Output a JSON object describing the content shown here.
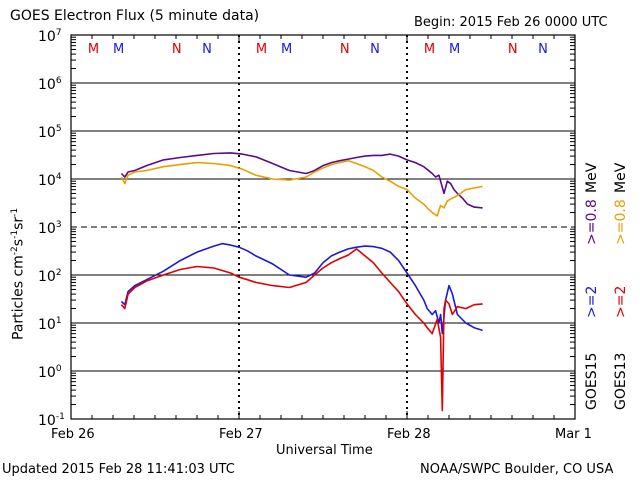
{
  "chart_data": {
    "type": "line",
    "title": "GOES Electron Flux (5 minute data)",
    "begin_label": "Begin: 2015 Feb 26 0000 UTC",
    "xlabel": "Universal Time",
    "ylabel": "Particles cm-2s-1sr-1",
    "ylabel_parts": {
      "base": "Particles cm",
      "e1": "-2",
      "mid1": "s",
      "e2": "-1",
      "mid2": "sr",
      "e3": "-1"
    },
    "y_scale": "log",
    "ylim": [
      0.1,
      10000000
    ],
    "y_ticks": [
      {
        "base": "10",
        "exp": "7",
        "value": 10000000
      },
      {
        "base": "10",
        "exp": "6",
        "value": 1000000
      },
      {
        "base": "10",
        "exp": "5",
        "value": 100000
      },
      {
        "base": "10",
        "exp": "4",
        "value": 10000
      },
      {
        "base": "10",
        "exp": "3",
        "value": 1000
      },
      {
        "base": "10",
        "exp": "2",
        "value": 100
      },
      {
        "base": "10",
        "exp": "1",
        "value": 10
      },
      {
        "base": "10",
        "exp": "0",
        "value": 1
      },
      {
        "base": "10",
        "exp": "-1",
        "value": 0.1
      }
    ],
    "x_unit": "days since 2015 Feb 26 0000 UTC",
    "xlim": [
      0,
      3
    ],
    "x_ticks": [
      {
        "label": "Feb 26",
        "value": 0
      },
      {
        "label": "Feb 27",
        "value": 1
      },
      {
        "label": "Feb 28",
        "value": 2
      },
      {
        "label": "Mar 1",
        "value": 3
      }
    ],
    "threshold_line": 1000,
    "marker_labels": [
      {
        "label": "M",
        "x": 0.13,
        "color": "#e00000"
      },
      {
        "label": "M",
        "x": 0.28,
        "color": "#1a1ad8"
      },
      {
        "label": "N",
        "x": 0.63,
        "color": "#e00000"
      },
      {
        "label": "N",
        "x": 0.81,
        "color": "#1a1ad8"
      },
      {
        "label": "M",
        "x": 1.13,
        "color": "#e00000"
      },
      {
        "label": "M",
        "x": 1.28,
        "color": "#1a1ad8"
      },
      {
        "label": "N",
        "x": 1.63,
        "color": "#e00000"
      },
      {
        "label": "N",
        "x": 1.81,
        "color": "#1a1ad8"
      },
      {
        "label": "M",
        "x": 2.13,
        "color": "#e00000"
      },
      {
        "label": "M",
        "x": 2.28,
        "color": "#1a1ad8"
      },
      {
        "label": "N",
        "x": 2.63,
        "color": "#e00000"
      },
      {
        "label": "N",
        "x": 2.81,
        "color": "#1a1ad8"
      }
    ],
    "legend": {
      "goes15": "GOES15",
      "goes13": "GOES13",
      "e2_15": ">=2",
      "e2_13": ">=2",
      "e08_15": ">=0.8",
      "e08_13": ">=0.8",
      "unit1": "MeV",
      "unit2": "MeV"
    },
    "series": [
      {
        "name": "GOES15 >=0.8 MeV",
        "color": "#5a0a8c",
        "x": [
          0.3,
          0.32,
          0.34,
          0.38,
          0.45,
          0.55,
          0.65,
          0.75,
          0.85,
          0.95,
          1.02,
          1.1,
          1.2,
          1.3,
          1.4,
          1.45,
          1.5,
          1.55,
          1.6,
          1.65,
          1.7,
          1.75,
          1.8,
          1.85,
          1.9,
          1.95,
          2.0,
          2.05,
          2.1,
          2.15,
          2.17,
          2.19,
          2.2,
          2.22,
          2.24,
          2.26,
          2.28,
          2.3,
          2.33,
          2.36,
          2.4,
          2.45
        ],
        "values": [
          13000,
          11000,
          14000,
          15000,
          19000,
          25000,
          28000,
          31000,
          34000,
          35000,
          33000,
          29000,
          21000,
          15000,
          13000,
          15000,
          19000,
          22000,
          24000,
          26000,
          28000,
          30000,
          31000,
          31000,
          33000,
          30000,
          25000,
          22000,
          18000,
          13000,
          11000,
          12000,
          9000,
          5000,
          9000,
          8000,
          6000,
          5000,
          4000,
          3000,
          2600,
          2500
        ]
      },
      {
        "name": "GOES13 >=0.8 MeV",
        "color": "#e8a000",
        "x": [
          0.3,
          0.32,
          0.34,
          0.38,
          0.45,
          0.55,
          0.65,
          0.75,
          0.85,
          0.95,
          1.02,
          1.1,
          1.2,
          1.3,
          1.4,
          1.45,
          1.5,
          1.55,
          1.6,
          1.65,
          1.7,
          1.75,
          1.8,
          1.85,
          1.9,
          1.95,
          2.0,
          2.05,
          2.1,
          2.12,
          2.15,
          2.18,
          2.2,
          2.22,
          2.24,
          2.27,
          2.3,
          2.35,
          2.4,
          2.45
        ],
        "values": [
          11000,
          8000,
          12000,
          14000,
          15000,
          18000,
          20000,
          22000,
          21000,
          19000,
          16000,
          12000,
          10000,
          9500,
          11000,
          14000,
          17000,
          20000,
          22000,
          24000,
          21000,
          18000,
          15000,
          11000,
          9000,
          7000,
          6000,
          4000,
          3000,
          2500,
          2000,
          1700,
          2800,
          2500,
          3500,
          4000,
          4500,
          6000,
          6500,
          7000
        ]
      },
      {
        "name": "GOES15 >=2 MeV",
        "color": "#1a1ad8",
        "x": [
          0.3,
          0.32,
          0.34,
          0.38,
          0.45,
          0.55,
          0.65,
          0.75,
          0.85,
          0.9,
          0.95,
          1.0,
          1.05,
          1.1,
          1.2,
          1.3,
          1.4,
          1.45,
          1.5,
          1.55,
          1.6,
          1.65,
          1.7,
          1.75,
          1.8,
          1.85,
          1.9,
          1.95,
          2.0,
          2.05,
          2.1,
          2.12,
          2.15,
          2.17,
          2.19,
          2.2,
          2.21,
          2.23,
          2.25,
          2.27,
          2.3,
          2.35,
          2.4,
          2.45
        ],
        "values": [
          28,
          24,
          45,
          60,
          80,
          120,
          200,
          300,
          400,
          450,
          420,
          380,
          320,
          250,
          170,
          100,
          90,
          110,
          180,
          250,
          300,
          350,
          380,
          400,
          390,
          360,
          300,
          200,
          110,
          60,
          30,
          20,
          15,
          18,
          10,
          15,
          6,
          30,
          60,
          40,
          15,
          10,
          8,
          7
        ]
      },
      {
        "name": "GOES13 >=2 MeV",
        "color": "#e00000",
        "x": [
          0.3,
          0.32,
          0.34,
          0.38,
          0.45,
          0.55,
          0.65,
          0.75,
          0.85,
          0.95,
          1.0,
          1.05,
          1.1,
          1.2,
          1.3,
          1.4,
          1.45,
          1.5,
          1.55,
          1.6,
          1.65,
          1.7,
          1.75,
          1.8,
          1.85,
          1.9,
          1.95,
          2.0,
          2.05,
          2.1,
          2.12,
          2.15,
          2.18,
          2.2,
          2.21,
          2.22,
          2.23,
          2.25,
          2.27,
          2.3,
          2.35,
          2.4,
          2.45
        ],
        "values": [
          24,
          20,
          40,
          55,
          75,
          100,
          130,
          150,
          140,
          110,
          90,
          80,
          70,
          60,
          55,
          70,
          100,
          140,
          180,
          220,
          260,
          350,
          250,
          180,
          110,
          70,
          45,
          25,
          15,
          10,
          8,
          6,
          12,
          5,
          0.15,
          20,
          30,
          25,
          15,
          22,
          20,
          24,
          25
        ]
      }
    ]
  },
  "footer": {
    "updated": "Updated 2015 Feb 28 11:41:03 UTC",
    "source": "NOAA/SWPC Boulder, CO USA"
  }
}
